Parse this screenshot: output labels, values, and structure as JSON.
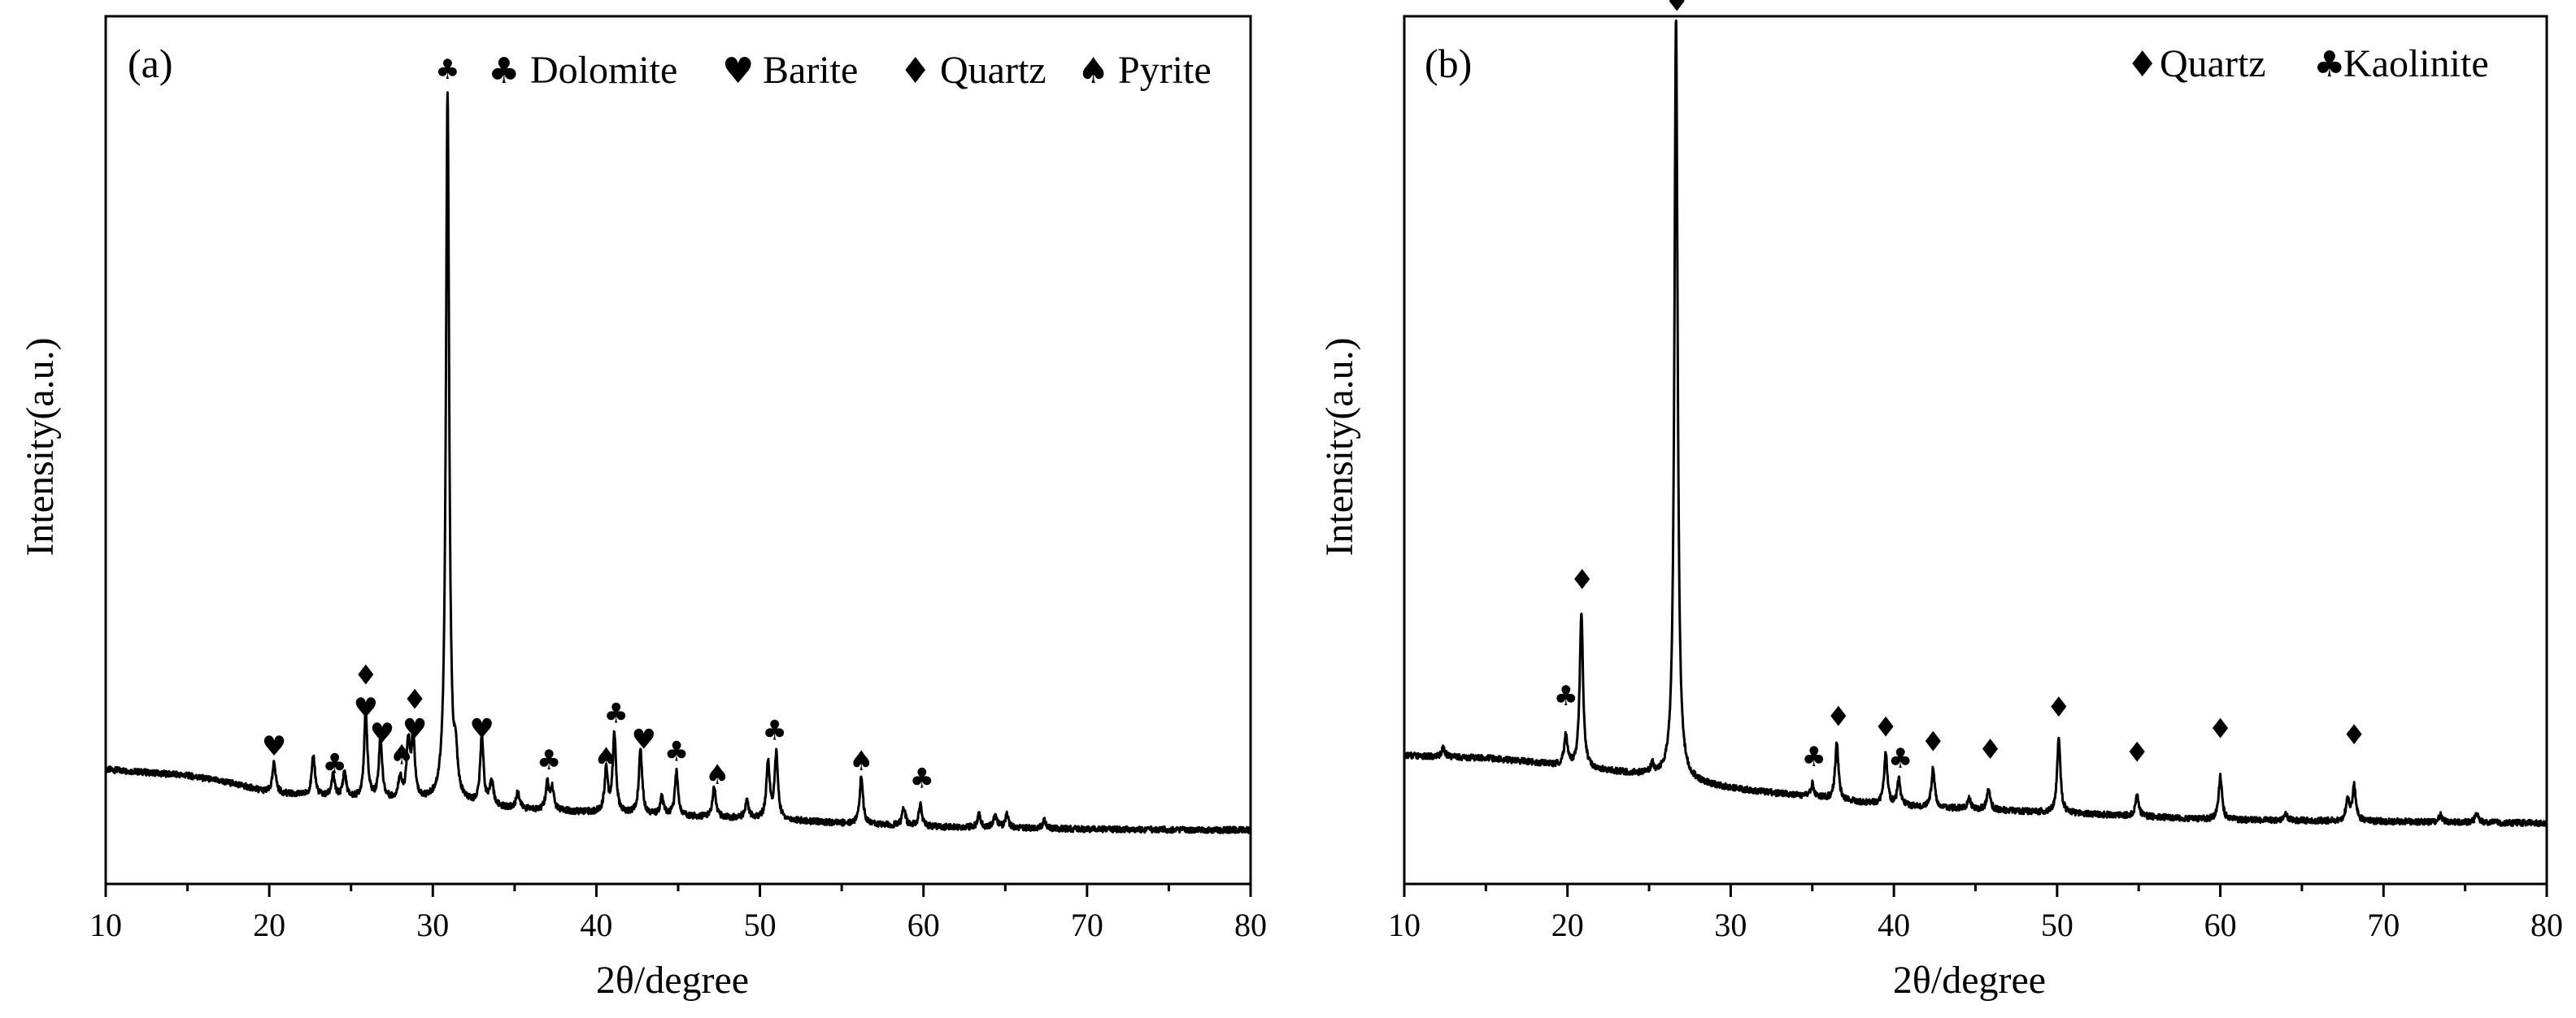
{
  "chart_data": [
    {
      "type": "line",
      "panel_label": "(a)",
      "xlabel": "2θ/degree",
      "ylabel": "Intensity(a.u.)",
      "xlim": [
        10,
        80
      ],
      "ylim": [
        0,
        100
      ],
      "xticks": [
        10,
        20,
        30,
        40,
        50,
        60,
        70,
        80
      ],
      "grid": false,
      "legend_position": "top-right",
      "legend": [
        {
          "symbol": "♣",
          "name": "Dolomite"
        },
        {
          "symbol": "♥",
          "name": "Barite"
        },
        {
          "symbol": "♦",
          "name": "Quartz"
        },
        {
          "symbol": "♠",
          "name": "Pyrite"
        }
      ],
      "background": [
        [
          10,
          13.2
        ],
        [
          15,
          12.5
        ],
        [
          18,
          11.5
        ],
        [
          20,
          10.5
        ],
        [
          25,
          9.8
        ],
        [
          30,
          9.4
        ],
        [
          35,
          8.6
        ],
        [
          40,
          8.2
        ],
        [
          45,
          7.8
        ],
        [
          50,
          7.5
        ],
        [
          55,
          7.0
        ],
        [
          60,
          6.6
        ],
        [
          70,
          6.3
        ],
        [
          80,
          6.2
        ]
      ],
      "peaks": [
        [
          20.3,
          3.5
        ],
        [
          22.7,
          4.5
        ],
        [
          23.9,
          2.5
        ],
        [
          24.6,
          3.0
        ],
        [
          25.9,
          10.0
        ],
        [
          26.8,
          7.0
        ],
        [
          28.0,
          2.5
        ],
        [
          28.5,
          6.5
        ],
        [
          28.8,
          7.0
        ],
        [
          30.9,
          82.0
        ],
        [
          31.4,
          4.0
        ],
        [
          33.0,
          8.0
        ],
        [
          33.6,
          3.0
        ],
        [
          35.2,
          2.0
        ],
        [
          37.0,
          3.0
        ],
        [
          37.3,
          2.5
        ],
        [
          40.6,
          5.0
        ],
        [
          41.1,
          9.0
        ],
        [
          42.7,
          7.5
        ],
        [
          44.0,
          2.0
        ],
        [
          44.9,
          5.0
        ],
        [
          47.2,
          3.5
        ],
        [
          49.2,
          2.0
        ],
        [
          50.5,
          6.5
        ],
        [
          51.0,
          7.5
        ],
        [
          56.2,
          5.5
        ],
        [
          58.8,
          2.0
        ],
        [
          59.8,
          2.5
        ],
        [
          63.4,
          1.5
        ],
        [
          64.4,
          1.5
        ],
        [
          65.1,
          1.5
        ],
        [
          67.4,
          1.0
        ]
      ],
      "peak_width": 0.12,
      "annotations": [
        {
          "symbol": "♥",
          "x": 20.3,
          "y": 14.8
        },
        {
          "symbol": "♣",
          "x": 24.0,
          "y": 12.8
        },
        {
          "symbol": "♦",
          "x": 25.9,
          "y": 23.0
        },
        {
          "symbol": "♥",
          "x": 25.9,
          "y": 19.2
        },
        {
          "symbol": "♥",
          "x": 26.9,
          "y": 16.3
        },
        {
          "symbol": "♠",
          "x": 28.1,
          "y": 13.8
        },
        {
          "symbol": "♦",
          "x": 28.9,
          "y": 20.2
        },
        {
          "symbol": "♥",
          "x": 28.9,
          "y": 16.8
        },
        {
          "symbol": "♣",
          "x": 30.9,
          "y": 92.8
        },
        {
          "symbol": "♥",
          "x": 33.0,
          "y": 16.8
        },
        {
          "symbol": "♣",
          "x": 37.1,
          "y": 13.2
        },
        {
          "symbol": "♠",
          "x": 40.6,
          "y": 13.5
        },
        {
          "symbol": "♣",
          "x": 41.2,
          "y": 18.6
        },
        {
          "symbol": "♥",
          "x": 42.9,
          "y": 15.6
        },
        {
          "symbol": "♣",
          "x": 44.9,
          "y": 14.2
        },
        {
          "symbol": "♠",
          "x": 47.4,
          "y": 11.5
        },
        {
          "symbol": "♣",
          "x": 50.9,
          "y": 16.6
        },
        {
          "symbol": "♠",
          "x": 56.2,
          "y": 13.1
        },
        {
          "symbol": "♣",
          "x": 59.9,
          "y": 11.1
        }
      ]
    },
    {
      "type": "line",
      "panel_label": "(b)",
      "xlabel": "2θ/degree",
      "ylabel": "Intensity(a.u.)",
      "xlim": [
        10,
        80
      ],
      "ylim": [
        0,
        100
      ],
      "xticks": [
        10,
        20,
        30,
        40,
        50,
        60,
        70,
        80
      ],
      "grid": false,
      "legend_position": "top-right",
      "legend": [
        {
          "symbol": "♦",
          "name": "Quartz"
        },
        {
          "symbol": "♣",
          "name": "Kaolinite"
        }
      ],
      "background": [
        [
          10,
          14.8
        ],
        [
          15,
          14.5
        ],
        [
          18,
          14.0
        ],
        [
          20,
          13.5
        ],
        [
          25,
          12.5
        ],
        [
          30,
          11.0
        ],
        [
          35,
          10.0
        ],
        [
          40,
          9.0
        ],
        [
          45,
          8.6
        ],
        [
          50,
          8.2
        ],
        [
          55,
          7.8
        ],
        [
          60,
          7.4
        ],
        [
          70,
          7.2
        ],
        [
          80,
          7.0
        ]
      ],
      "peaks": [
        [
          12.4,
          1.0
        ],
        [
          19.9,
          3.5
        ],
        [
          20.85,
          18.0
        ],
        [
          25.2,
          1.0
        ],
        [
          26.65,
          88.0
        ],
        [
          35.0,
          1.5
        ],
        [
          36.5,
          6.5
        ],
        [
          39.5,
          6.0
        ],
        [
          40.3,
          3.0
        ],
        [
          42.4,
          4.5
        ],
        [
          44.6,
          1.2
        ],
        [
          45.8,
          2.5
        ],
        [
          50.1,
          8.5
        ],
        [
          54.9,
          2.5
        ],
        [
          60.0,
          5.0
        ],
        [
          64.0,
          0.8
        ],
        [
          67.8,
          2.5
        ],
        [
          68.2,
          4.0
        ],
        [
          73.5,
          0.8
        ],
        [
          75.7,
          1.0
        ]
      ],
      "peak_width": 0.12,
      "annotations": [
        {
          "symbol": "♣",
          "x": 19.9,
          "y": 20.6
        },
        {
          "symbol": "♦",
          "x": 20.9,
          "y": 34.0
        },
        {
          "symbol": "♦",
          "x": 26.7,
          "y": 100.6
        },
        {
          "symbol": "♣",
          "x": 35.1,
          "y": 13.6
        },
        {
          "symbol": "♦",
          "x": 36.6,
          "y": 18.2
        },
        {
          "symbol": "♦",
          "x": 39.5,
          "y": 17.0
        },
        {
          "symbol": "♣",
          "x": 40.4,
          "y": 13.4
        },
        {
          "symbol": "♦",
          "x": 42.4,
          "y": 15.3
        },
        {
          "symbol": "♦",
          "x": 45.9,
          "y": 14.4
        },
        {
          "symbol": "♦",
          "x": 50.1,
          "y": 19.3
        },
        {
          "symbol": "♦",
          "x": 54.9,
          "y": 14.1
        },
        {
          "symbol": "♦",
          "x": 60.0,
          "y": 16.8
        },
        {
          "symbol": "♦",
          "x": 68.2,
          "y": 16.1
        }
      ]
    }
  ]
}
